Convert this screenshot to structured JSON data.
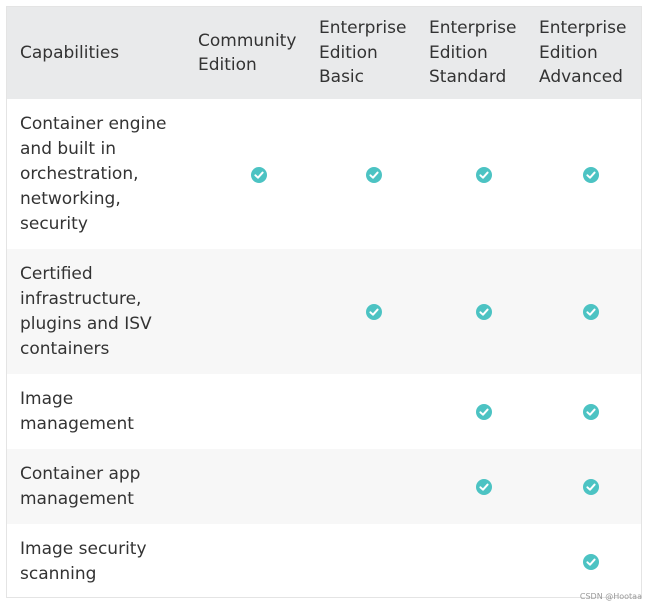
{
  "table": {
    "headers": [
      "Capabilities",
      "Community\nEdition",
      "Enterprise\nEdition\nBasic",
      "Enterprise\nEdition\nStandard",
      "Enterprise\nEdition\nAdvanced"
    ],
    "rows": [
      {
        "capability": "Container engine\nand built in\norchestration,\nnetworking,\nsecurity",
        "checks": [
          true,
          true,
          true,
          true
        ]
      },
      {
        "capability": "Certified\ninfrastructure,\nplugins and ISV\ncontainers",
        "checks": [
          false,
          true,
          true,
          true
        ]
      },
      {
        "capability": "Image\nmanagement",
        "checks": [
          false,
          false,
          true,
          true
        ]
      },
      {
        "capability": "Container app\nmanagement",
        "checks": [
          false,
          false,
          true,
          true
        ]
      },
      {
        "capability": "Image security\nscanning",
        "checks": [
          false,
          false,
          false,
          true
        ]
      }
    ]
  },
  "icon": {
    "name": "check-circle-icon",
    "color": "#4cc3c3"
  },
  "watermark": "CSDN @Hootaa"
}
